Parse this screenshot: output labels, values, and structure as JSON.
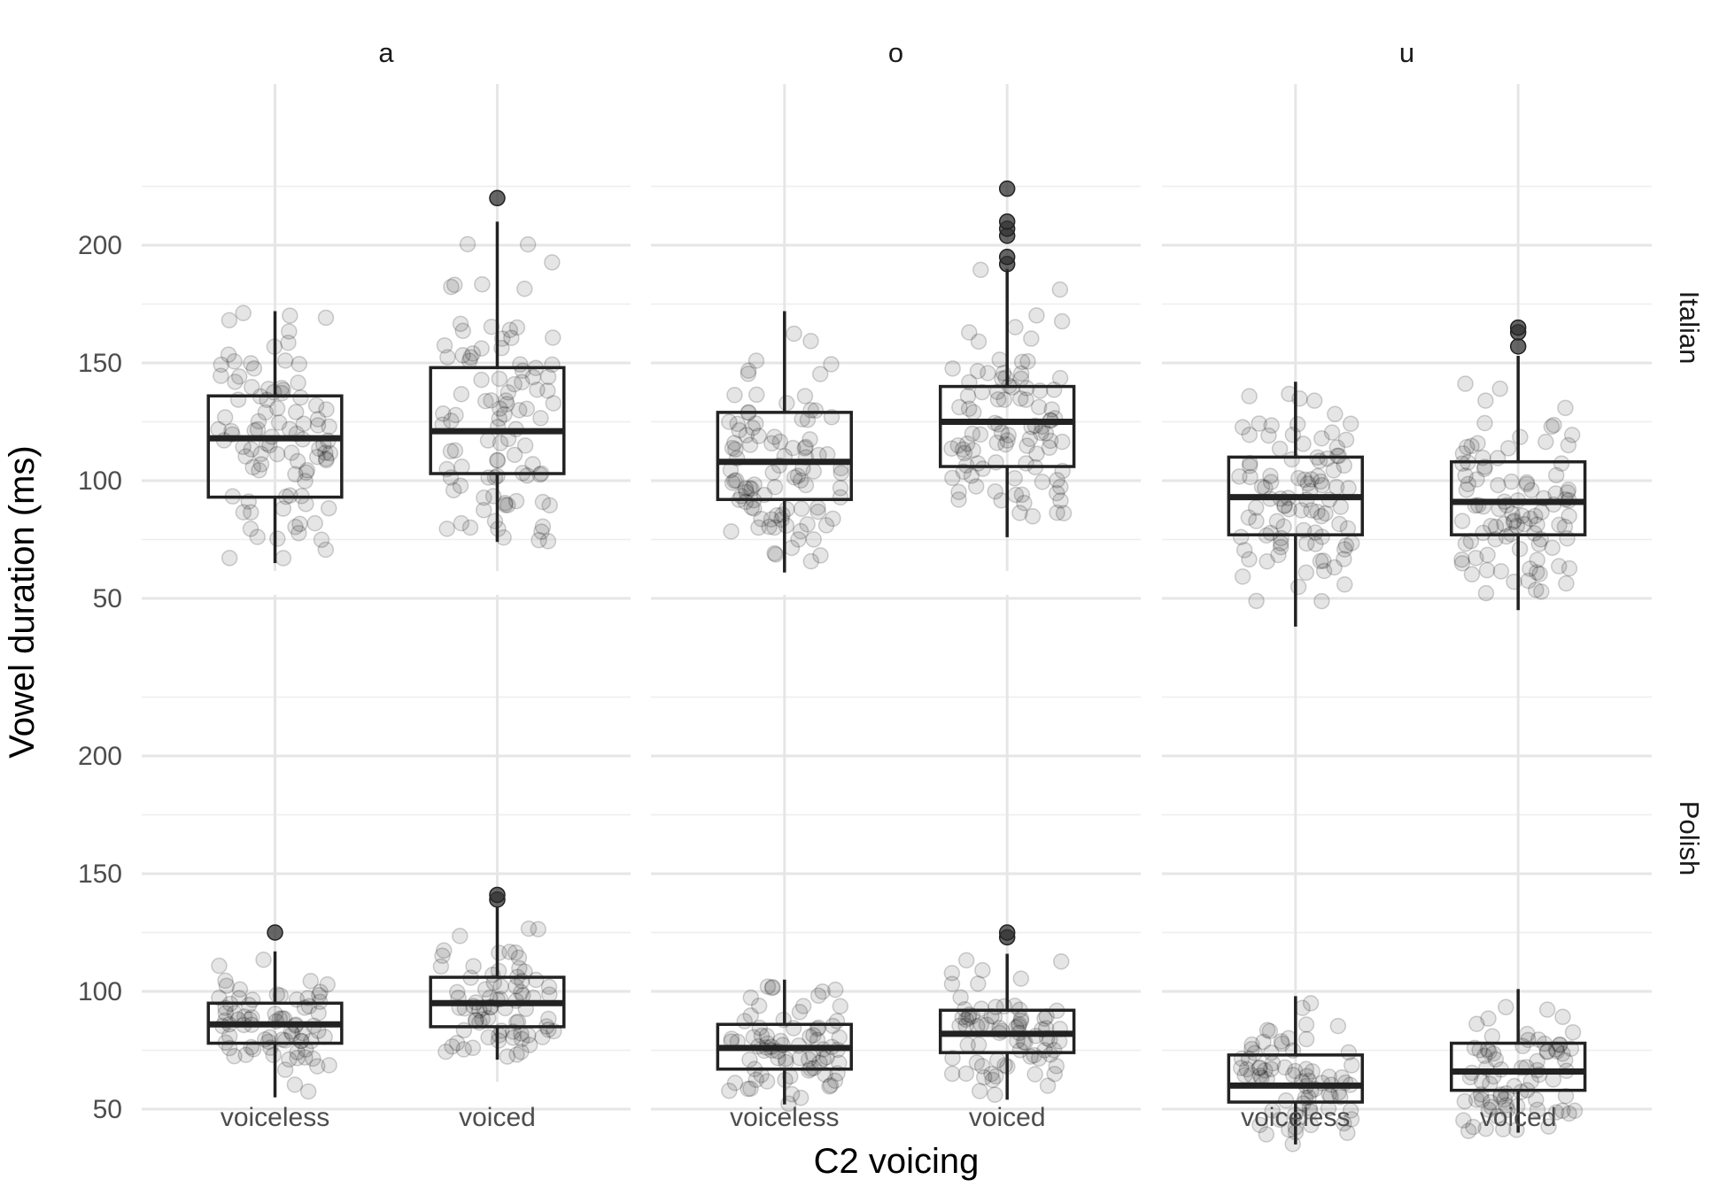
{
  "chart_data": {
    "type": "box",
    "facet_cols": [
      "a",
      "o",
      "u"
    ],
    "facet_rows": [
      "Italian",
      "Polish"
    ],
    "categories": [
      "voiceless",
      "voiced"
    ],
    "xlabel": "C2 voicing",
    "ylabel": "Vowel duration (ms)",
    "ylim": [
      35,
      230
    ],
    "yticks": [
      50,
      100,
      150,
      200
    ],
    "grid": true,
    "panels": [
      {
        "row": "Italian",
        "col": "a",
        "boxes": [
          {
            "category": "voiceless",
            "min": 65,
            "q1": 93,
            "median": 118,
            "q3": 136,
            "max": 172,
            "outliers": []
          },
          {
            "category": "voiced",
            "min": 74,
            "q1": 103,
            "median": 121,
            "q3": 148,
            "max": 210,
            "outliers": [
              220
            ]
          }
        ]
      },
      {
        "row": "Italian",
        "col": "o",
        "boxes": [
          {
            "category": "voiceless",
            "min": 61,
            "q1": 92,
            "median": 108,
            "q3": 129,
            "max": 172,
            "outliers": []
          },
          {
            "category": "voiced",
            "min": 76,
            "q1": 106,
            "median": 125,
            "q3": 140,
            "max": 190,
            "outliers": [
              192,
              195,
              204,
              207,
              210,
              224
            ]
          }
        ]
      },
      {
        "row": "Italian",
        "col": "u",
        "boxes": [
          {
            "category": "voiceless",
            "min": 38,
            "q1": 77,
            "median": 93,
            "q3": 110,
            "max": 142,
            "outliers": []
          },
          {
            "category": "voiced",
            "min": 45,
            "q1": 77,
            "median": 91,
            "q3": 108,
            "max": 153,
            "outliers": [
              157,
              163,
              165
            ]
          }
        ]
      },
      {
        "row": "Polish",
        "col": "a",
        "boxes": [
          {
            "category": "voiceless",
            "min": 55,
            "q1": 78,
            "median": 86,
            "q3": 95,
            "max": 117,
            "outliers": [
              125
            ]
          },
          {
            "category": "voiced",
            "min": 71,
            "q1": 85,
            "median": 95,
            "q3": 106,
            "max": 136,
            "outliers": [
              139,
              141
            ]
          }
        ]
      },
      {
        "row": "Polish",
        "col": "o",
        "boxes": [
          {
            "category": "voiceless",
            "min": 52,
            "q1": 67,
            "median": 76,
            "q3": 86,
            "max": 105,
            "outliers": []
          },
          {
            "category": "voiced",
            "min": 54,
            "q1": 74,
            "median": 82,
            "q3": 92,
            "max": 116,
            "outliers": [
              123,
              125
            ]
          }
        ]
      },
      {
        "row": "Polish",
        "col": "u",
        "boxes": [
          {
            "category": "voiceless",
            "min": 35,
            "q1": 53,
            "median": 60,
            "q3": 73,
            "max": 98,
            "outliers": []
          },
          {
            "category": "voiced",
            "min": 40,
            "q1": 58,
            "median": 66,
            "q3": 78,
            "max": 101,
            "outliers": []
          }
        ]
      }
    ]
  }
}
